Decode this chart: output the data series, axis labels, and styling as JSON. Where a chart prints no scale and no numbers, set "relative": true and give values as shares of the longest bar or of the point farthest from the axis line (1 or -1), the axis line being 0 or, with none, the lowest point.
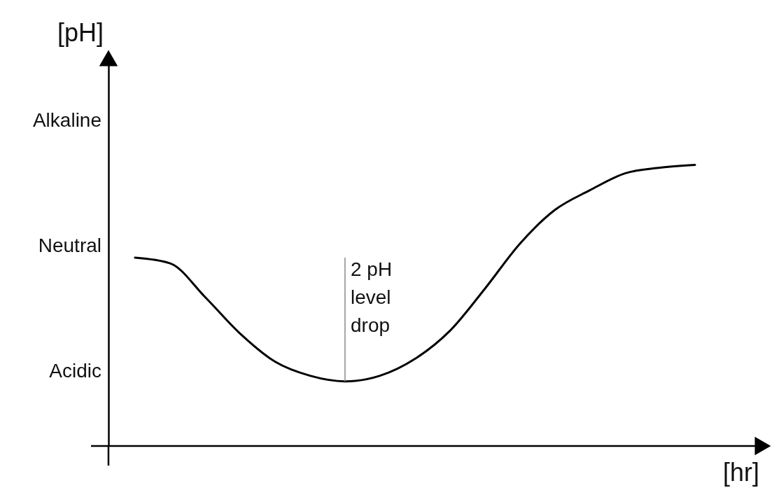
{
  "chart_data": {
    "type": "line",
    "xlabel": "[hr]",
    "ylabel": "[pH]",
    "relative": true,
    "categories": [
      null,
      null,
      null,
      null,
      null,
      null,
      null,
      null,
      null,
      null,
      null,
      null,
      null,
      null,
      null,
      null,
      null
    ],
    "series": [
      {
        "color": "#000000",
        "values": [
          0.67,
          0.65,
          0.53,
          0.4,
          0.3,
          0.25,
          0.23,
          0.25,
          0.31,
          0.41,
          0.56,
          0.72,
          0.84,
          0.91,
          0.97,
          0.99,
          1
        ]
      }
    ],
    "annotations": [
      "Alkaline",
      "Neutral",
      "Acidic",
      "2 pH\nlevel\ndrop"
    ],
    "grid": false,
    "marker": "none",
    "line_style": "solid"
  }
}
